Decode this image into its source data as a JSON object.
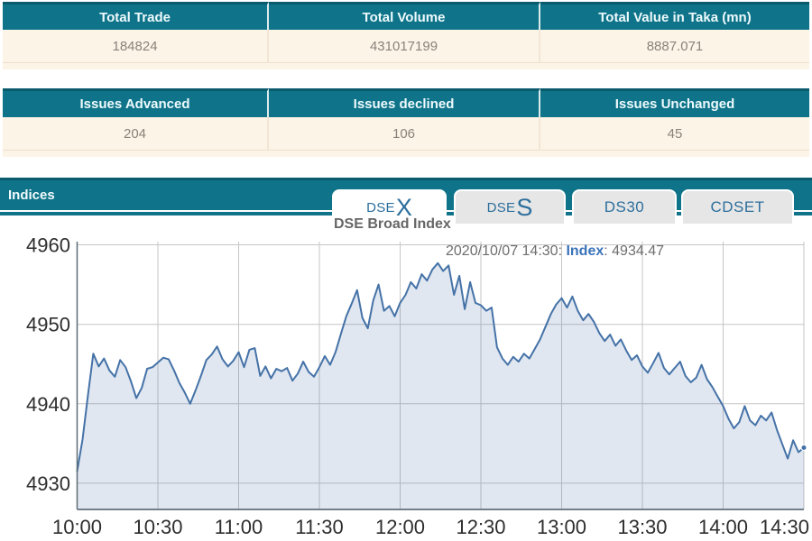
{
  "tables": [
    {
      "id": "trade-summary",
      "headers": [
        "Total Trade",
        "Total Volume",
        "Total Value in Taka (mn)"
      ],
      "values": [
        "184824",
        "431017199",
        "8887.071"
      ]
    },
    {
      "id": "issues-summary",
      "headers": [
        "Issues Advanced",
        "Issues declined",
        "Issues Unchanged"
      ],
      "values": [
        "204",
        "106",
        "45"
      ]
    }
  ],
  "indices_panel": {
    "title": "Indices",
    "tabs": [
      {
        "label": "DSEX",
        "small": "DSE",
        "big": "X",
        "active": true
      },
      {
        "label": "DSES",
        "small": "DSE",
        "big": "S",
        "active": false
      },
      {
        "label": "DS30",
        "active": false
      },
      {
        "label": "CDSET",
        "active": false
      }
    ]
  },
  "chart_data": {
    "type": "area",
    "title": "DSE Broad Index",
    "legend": "none",
    "grid": true,
    "xlabel": "",
    "ylabel": "",
    "x_tick_labels": [
      "10:00",
      "10:30",
      "11:00",
      "11:30",
      "12:00",
      "12:30",
      "13:00",
      "13:30",
      "14:00",
      "14:30"
    ],
    "x_tick_minutes": [
      0,
      30,
      60,
      90,
      120,
      150,
      180,
      210,
      240,
      270
    ],
    "y_ticks": [
      4930,
      4940,
      4950,
      4960
    ],
    "ylim": [
      4926.7,
      4960.4
    ],
    "xlim_minutes": [
      0,
      270
    ],
    "annotation": {
      "prefix": "2020/10/07 14:30: ",
      "series": "Index",
      "suffix": ": 4934.47"
    },
    "last_value": 4934.47,
    "series": [
      {
        "name": "Index",
        "color": "#4572a7",
        "fill": "rgba(69,114,167,0.17)",
        "points": [
          [
            0,
            4931.5
          ],
          [
            2,
            4935.5
          ],
          [
            4,
            4941
          ],
          [
            6,
            4946.3
          ],
          [
            8,
            4944.7
          ],
          [
            10,
            4945.7
          ],
          [
            12,
            4944.2
          ],
          [
            14,
            4943.4
          ],
          [
            16,
            4945.5
          ],
          [
            18,
            4944.6
          ],
          [
            20,
            4942.8
          ],
          [
            22,
            4940.7
          ],
          [
            24,
            4942
          ],
          [
            26,
            4944.4
          ],
          [
            28,
            4944.6
          ],
          [
            30,
            4945.2
          ],
          [
            32,
            4945.8
          ],
          [
            34,
            4945.6
          ],
          [
            36,
            4944.2
          ],
          [
            38,
            4942.6
          ],
          [
            40,
            4941.4
          ],
          [
            42,
            4940
          ],
          [
            44,
            4941.7
          ],
          [
            46,
            4943.5
          ],
          [
            48,
            4945.5
          ],
          [
            50,
            4946.2
          ],
          [
            52,
            4947.2
          ],
          [
            54,
            4945.6
          ],
          [
            56,
            4944.7
          ],
          [
            58,
            4945.4
          ],
          [
            60,
            4946.5
          ],
          [
            62,
            4944.6
          ],
          [
            64,
            4946.8
          ],
          [
            66,
            4947
          ],
          [
            68,
            4943.5
          ],
          [
            70,
            4944.7
          ],
          [
            72,
            4943.2
          ],
          [
            74,
            4944.4
          ],
          [
            76,
            4944.1
          ],
          [
            78,
            4944.5
          ],
          [
            80,
            4942.9
          ],
          [
            82,
            4943.8
          ],
          [
            84,
            4945.3
          ],
          [
            86,
            4944
          ],
          [
            88,
            4943.4
          ],
          [
            90,
            4944.6
          ],
          [
            92,
            4946
          ],
          [
            94,
            4944.9
          ],
          [
            96,
            4946.5
          ],
          [
            98,
            4948.8
          ],
          [
            100,
            4951
          ],
          [
            102,
            4952.6
          ],
          [
            104,
            4954.3
          ],
          [
            106,
            4950.8
          ],
          [
            108,
            4949.5
          ],
          [
            110,
            4953
          ],
          [
            112,
            4955
          ],
          [
            114,
            4951.7
          ],
          [
            116,
            4952.3
          ],
          [
            118,
            4951
          ],
          [
            120,
            4952.7
          ],
          [
            122,
            4953.7
          ],
          [
            124,
            4955.3
          ],
          [
            126,
            4954.5
          ],
          [
            128,
            4956.3
          ],
          [
            130,
            4955.5
          ],
          [
            132,
            4956.9
          ],
          [
            134,
            4957.7
          ],
          [
            136,
            4956.7
          ],
          [
            138,
            4957.4
          ],
          [
            140,
            4953.7
          ],
          [
            142,
            4956.1
          ],
          [
            144,
            4951.9
          ],
          [
            146,
            4955.3
          ],
          [
            148,
            4952.7
          ],
          [
            150,
            4952.4
          ],
          [
            152,
            4951.7
          ],
          [
            154,
            4952.1
          ],
          [
            156,
            4947.1
          ],
          [
            158,
            4945.7
          ],
          [
            160,
            4944.9
          ],
          [
            162,
            4945.9
          ],
          [
            164,
            4945.3
          ],
          [
            166,
            4946.3
          ],
          [
            168,
            4945.7
          ],
          [
            170,
            4946.9
          ],
          [
            172,
            4948.1
          ],
          [
            174,
            4949.7
          ],
          [
            176,
            4951.3
          ],
          [
            178,
            4952.5
          ],
          [
            180,
            4953.3
          ],
          [
            182,
            4952.1
          ],
          [
            184,
            4953.5
          ],
          [
            186,
            4951.7
          ],
          [
            188,
            4950.5
          ],
          [
            190,
            4951.3
          ],
          [
            192,
            4950.3
          ],
          [
            194,
            4948.9
          ],
          [
            196,
            4947.9
          ],
          [
            198,
            4948.7
          ],
          [
            200,
            4947.3
          ],
          [
            202,
            4948.1
          ],
          [
            204,
            4946.7
          ],
          [
            206,
            4945.5
          ],
          [
            208,
            4946.1
          ],
          [
            210,
            4944.7
          ],
          [
            212,
            4943.9
          ],
          [
            214,
            4945.1
          ],
          [
            216,
            4946.4
          ],
          [
            218,
            4944.5
          ],
          [
            220,
            4943.7
          ],
          [
            222,
            4944.5
          ],
          [
            224,
            4945.3
          ],
          [
            226,
            4943.5
          ],
          [
            228,
            4942.7
          ],
          [
            230,
            4943.3
          ],
          [
            232,
            4944.9
          ],
          [
            234,
            4943.1
          ],
          [
            236,
            4942.1
          ],
          [
            238,
            4940.9
          ],
          [
            240,
            4939.7
          ],
          [
            242,
            4938.1
          ],
          [
            244,
            4936.9
          ],
          [
            246,
            4937.7
          ],
          [
            248,
            4939.7
          ],
          [
            250,
            4937.9
          ],
          [
            252,
            4937.3
          ],
          [
            254,
            4938.5
          ],
          [
            256,
            4937.9
          ],
          [
            258,
            4938.9
          ],
          [
            260,
            4936.7
          ],
          [
            262,
            4934.9
          ],
          [
            264,
            4933.1
          ],
          [
            266,
            4935.4
          ],
          [
            268,
            4933.9
          ],
          [
            270,
            4934.47
          ]
        ]
      }
    ]
  },
  "colors": {
    "teal": "#0f7489",
    "teal_dark": "#0a5b6d",
    "row_bg": "#fdf4e8",
    "value_text": "#8a8279",
    "tab_text": "#2d6f9c",
    "line": "#4572a7",
    "grid": "#c6c6c6"
  }
}
